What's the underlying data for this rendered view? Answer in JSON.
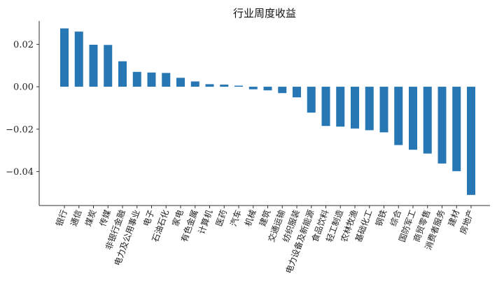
{
  "chart_data": {
    "type": "bar",
    "title": "行业周度收益",
    "xlabel": "",
    "ylabel": "",
    "ylim": [
      -0.056,
      0.031
    ],
    "yticks": [
      0.02,
      0.0,
      -0.02,
      -0.04
    ],
    "ytick_labels": [
      "0.02",
      "0.00",
      "−0.02",
      "−0.04"
    ],
    "grid": false,
    "bar_color": "#2777b4",
    "categories": [
      "银行",
      "通信",
      "煤炭",
      "传媒",
      "非银行金融",
      "电力及公用事业",
      "电子",
      "石油石化",
      "家电",
      "有色金属",
      "计算机",
      "医药",
      "汽车",
      "机械",
      "建筑",
      "交通运输",
      "纺织服装",
      "电力设备及新能源",
      "食品饮料",
      "轻工制造",
      "农林牧渔",
      "基础化工",
      "钢铁",
      "综合",
      "国防军工",
      "商贸零售",
      "消费者服务",
      "建材",
      "房地产"
    ],
    "values": [
      0.0275,
      0.026,
      0.0198,
      0.0197,
      0.012,
      0.007,
      0.0067,
      0.0065,
      0.0042,
      0.0025,
      0.0012,
      0.001,
      0.0005,
      -0.0012,
      -0.0017,
      -0.003,
      -0.005,
      -0.0122,
      -0.0185,
      -0.0188,
      -0.0197,
      -0.0205,
      -0.0215,
      -0.0275,
      -0.0297,
      -0.0315,
      -0.0362,
      -0.0398,
      -0.051
    ]
  }
}
